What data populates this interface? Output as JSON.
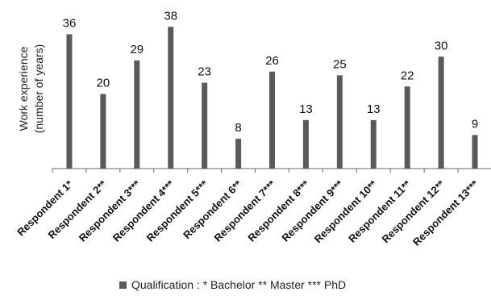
{
  "chart_data": {
    "type": "bar",
    "categories": [
      "Respondent 1*",
      "Respondent 2**",
      "Respondent 3***",
      "Respondent 4***",
      "Respondent 5***",
      "Respondent 6**",
      "Respondent 7***",
      "Respondent 8***",
      "Respondent 9***",
      "Respondent 10**",
      "Respondent 11**",
      "Respondent 12**",
      "Respondent 13***"
    ],
    "values": [
      36,
      20,
      29,
      38,
      23,
      8,
      26,
      13,
      25,
      13,
      22,
      30,
      9
    ],
    "ylabel_line1": "Work experience",
    "ylabel_line2": "(number of years)",
    "legend": "Qualification : * Bachelor ** Master *** PhD",
    "ylim": [
      0,
      40
    ],
    "bar_color": "#5a5a5a"
  }
}
